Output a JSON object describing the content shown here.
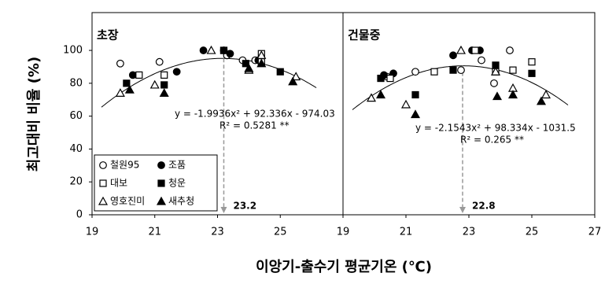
{
  "chart_data": [
    {
      "type": "scatter",
      "title": "초장",
      "ylabel": "최고대비 비율 (%)",
      "xlabel": "이앙기-출수기 평균기온 (℃)",
      "xlim": [
        19,
        27
      ],
      "xticks": [
        19,
        21,
        23,
        25
      ],
      "ylim": [
        0,
        123
      ],
      "yticks": [
        0,
        20,
        40,
        60,
        80,
        100
      ],
      "trendline": {
        "coefficients": [
          -1.9936,
          92.336,
          -974.03
        ],
        "equation": "y = -1.9936x² + 92.336x - 974.03",
        "r2": "R² = 0.5281 **"
      },
      "vline": 23.2,
      "series": [
        {
          "name": "철원95",
          "marker": "circle",
          "filled": false,
          "color": "#000000",
          "x": [
            19.9,
            21.15,
            23.3,
            23.8,
            24.2
          ],
          "y": [
            92,
            93,
            97,
            94,
            94
          ]
        },
        {
          "name": "조품",
          "marker": "circle",
          "filled": true,
          "color": "#000000",
          "x": [
            20.3,
            21.7,
            22.55,
            23.2,
            23.4,
            24.3
          ],
          "y": [
            85,
            87,
            100,
            100,
            98,
            94
          ]
        },
        {
          "name": "대보",
          "marker": "square",
          "filled": false,
          "color": "#000000",
          "x": [
            20.5,
            21.3,
            23.2,
            24.4,
            24.4
          ],
          "y": [
            85,
            85,
            100,
            98,
            93
          ]
        },
        {
          "name": "청운",
          "marker": "square",
          "filled": true,
          "color": "#000000",
          "x": [
            20.1,
            21.3,
            23.2,
            23.9,
            25.0
          ],
          "y": [
            80,
            79,
            100,
            92,
            87
          ]
        },
        {
          "name": "영호진미",
          "marker": "triangle",
          "filled": false,
          "color": "#000000",
          "x": [
            19.9,
            21.0,
            22.8,
            24.0,
            24.4,
            25.5
          ],
          "y": [
            74,
            79,
            100,
            88,
            97,
            84
          ]
        },
        {
          "name": "새추청",
          "marker": "triangle",
          "filled": true,
          "color": "#000000",
          "x": [
            20.2,
            21.3,
            24.0,
            24.4,
            25.4
          ],
          "y": [
            76,
            74,
            89,
            92,
            81
          ]
        }
      ]
    },
    {
      "type": "scatter",
      "title": "건물중",
      "xlim": [
        19,
        27
      ],
      "xticks": [
        19,
        21,
        23,
        25,
        27
      ],
      "ylim": [
        0,
        123
      ],
      "trendline": {
        "coefficients": [
          -2.1543,
          98.334,
          -1031.5
        ],
        "equation": "y = -2.1543x² + 98.334x - 1031.5",
        "r2": "R² = 0.265 **"
      },
      "vline": 22.8,
      "series": [
        {
          "marker": "circle",
          "filled": false,
          "color": "#000000",
          "x": [
            20.4,
            21.3,
            22.75,
            23.4,
            23.8,
            24.3
          ],
          "y": [
            84,
            87,
            88,
            94,
            80,
            100
          ]
        },
        {
          "marker": "circle",
          "filled": true,
          "color": "#000000",
          "x": [
            20.3,
            20.6,
            22.5,
            23.1,
            23.35
          ],
          "y": [
            85,
            86,
            97,
            100,
            100
          ]
        },
        {
          "marker": "square",
          "filled": false,
          "color": "#000000",
          "x": [
            20.5,
            21.9,
            23.2,
            23.85,
            24.4,
            25.0
          ],
          "y": [
            83,
            87,
            100,
            87,
            88,
            93
          ]
        },
        {
          "marker": "square",
          "filled": true,
          "color": "#000000",
          "x": [
            20.2,
            21.3,
            22.5,
            23.85,
            25.0
          ],
          "y": [
            83,
            73,
            88,
            91,
            86
          ]
        },
        {
          "marker": "triangle",
          "filled": false,
          "color": "#000000",
          "x": [
            19.9,
            21.0,
            22.75,
            23.85,
            24.4,
            25.45
          ],
          "y": [
            71,
            67,
            100,
            87,
            77,
            73
          ]
        },
        {
          "marker": "triangle",
          "filled": true,
          "color": "#000000",
          "x": [
            20.2,
            21.3,
            23.9,
            24.4,
            25.3
          ],
          "y": [
            73,
            61,
            72,
            73,
            69
          ]
        }
      ]
    }
  ]
}
